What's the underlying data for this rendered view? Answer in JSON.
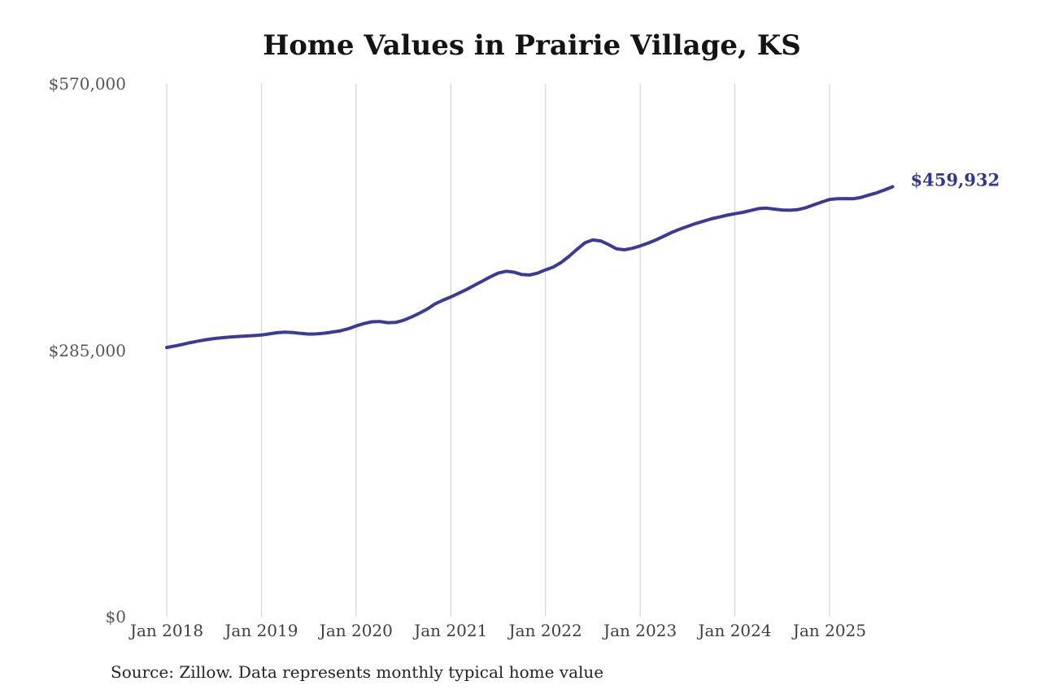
{
  "header": {
    "title": "Home Values in Prairie Village, KS"
  },
  "footer": {
    "source_note": "Source: Zillow. Data represents monthly typical home value"
  },
  "colors": {
    "line": "#3b3a99",
    "latest_value_label": "#32368f",
    "gridline": "#cbcbcb",
    "y_tick_text": "#565656",
    "x_tick_text": "#3f3f3f",
    "title_text": "#141414",
    "source_text": "#232323",
    "background": "#ffffff"
  },
  "chart_data": {
    "type": "line",
    "title": "Home Values in Prairie Village, KS",
    "xlabel": "",
    "ylabel": "",
    "grid": "vertical-only",
    "legend": "none",
    "ylim": [
      0,
      570000
    ],
    "y_ticks": [
      0,
      285000,
      570000
    ],
    "y_tick_labels": [
      "$0",
      "$285,000",
      "$570,000"
    ],
    "x_tick_labels": [
      "Jan 2018",
      "Jan 2019",
      "Jan 2020",
      "Jan 2021",
      "Jan 2022",
      "Jan 2023",
      "Jan 2024",
      "Jan 2025"
    ],
    "latest_value_label": "$459,932",
    "latest_value": 459932,
    "x": [
      "2018-01",
      "2018-02",
      "2018-03",
      "2018-04",
      "2018-05",
      "2018-06",
      "2018-07",
      "2018-08",
      "2018-09",
      "2018-10",
      "2018-11",
      "2018-12",
      "2019-01",
      "2019-02",
      "2019-03",
      "2019-04",
      "2019-05",
      "2019-06",
      "2019-07",
      "2019-08",
      "2019-09",
      "2019-10",
      "2019-11",
      "2019-12",
      "2020-01",
      "2020-02",
      "2020-03",
      "2020-04",
      "2020-05",
      "2020-06",
      "2020-07",
      "2020-08",
      "2020-09",
      "2020-10",
      "2020-11",
      "2020-12",
      "2021-01",
      "2021-02",
      "2021-03",
      "2021-04",
      "2021-05",
      "2021-06",
      "2021-07",
      "2021-08",
      "2021-09",
      "2021-10",
      "2021-11",
      "2021-12",
      "2022-01",
      "2022-02",
      "2022-03",
      "2022-04",
      "2022-05",
      "2022-06",
      "2022-07",
      "2022-08",
      "2022-09",
      "2022-10",
      "2022-11",
      "2022-12",
      "2023-01",
      "2023-02",
      "2023-03",
      "2023-04",
      "2023-05",
      "2023-06",
      "2023-07",
      "2023-08",
      "2023-09",
      "2023-10",
      "2023-11",
      "2023-12",
      "2024-01",
      "2024-02",
      "2024-03",
      "2024-04",
      "2024-05",
      "2024-06",
      "2024-07",
      "2024-08",
      "2024-09",
      "2024-10",
      "2024-11",
      "2024-12",
      "2025-01",
      "2025-02",
      "2025-03",
      "2025-04",
      "2025-05",
      "2025-06",
      "2025-07",
      "2025-08",
      "2025-09"
    ],
    "values": [
      288000,
      289500,
      291300,
      293200,
      294800,
      296300,
      297500,
      298400,
      299100,
      299700,
      300200,
      300700,
      301300,
      302500,
      303800,
      304300,
      304000,
      303000,
      302300,
      302500,
      303300,
      304500,
      305800,
      308000,
      311000,
      313500,
      315500,
      315800,
      314500,
      314800,
      317000,
      320500,
      324500,
      329000,
      334500,
      338500,
      342000,
      346000,
      350000,
      354500,
      359000,
      363500,
      367500,
      369500,
      368500,
      366000,
      365500,
      367500,
      371000,
      374000,
      379000,
      385500,
      393000,
      400000,
      403000,
      402000,
      398000,
      393500,
      392500,
      394000,
      396600,
      399500,
      403000,
      407000,
      411000,
      414500,
      417500,
      420500,
      423000,
      425500,
      427500,
      429500,
      431000,
      432500,
      434500,
      436500,
      437000,
      436000,
      435000,
      434800,
      435500,
      437500,
      440500,
      443500,
      446300,
      447000,
      447200,
      447000,
      448500,
      451000,
      453500,
      456500,
      459932
    ]
  }
}
